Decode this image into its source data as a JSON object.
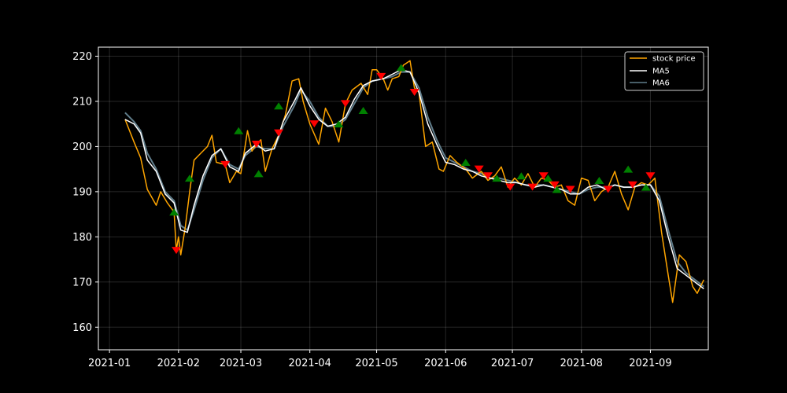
{
  "chart_data": {
    "type": "line",
    "title": "",
    "xlabel": "",
    "ylabel": "",
    "xlim": [
      "2020-12-27",
      "2021-09-27"
    ],
    "ylim": [
      155,
      222
    ],
    "x_ticks": [
      "2021-01",
      "2021-02",
      "2021-03",
      "2021-04",
      "2021-05",
      "2021-06",
      "2021-07",
      "2021-08",
      "2021-09"
    ],
    "y_ticks": [
      160,
      170,
      180,
      190,
      200,
      210,
      220
    ],
    "grid": true,
    "legend_position": "top-right",
    "series": [
      {
        "name": "stock price",
        "color": "#ffa500",
        "points": [
          [
            "2021-01-08",
            206.0
          ],
          [
            "2021-01-12",
            201.0
          ],
          [
            "2021-01-15",
            197.5
          ],
          [
            "2021-01-18",
            190.5
          ],
          [
            "2021-01-22",
            187.0
          ],
          [
            "2021-01-24",
            190.0
          ],
          [
            "2021-01-27",
            187.5
          ],
          [
            "2021-01-30",
            185.5
          ],
          [
            "2021-01-31",
            177.0
          ],
          [
            "2021-02-01",
            180.0
          ],
          [
            "2021-02-02",
            176.0
          ],
          [
            "2021-02-04",
            182.0
          ],
          [
            "2021-02-06",
            190.0
          ],
          [
            "2021-02-08",
            197.0
          ],
          [
            "2021-02-11",
            198.5
          ],
          [
            "2021-02-14",
            200.0
          ],
          [
            "2021-02-16",
            202.5
          ],
          [
            "2021-02-18",
            196.5
          ],
          [
            "2021-02-22",
            196.0
          ],
          [
            "2021-02-24",
            192.0
          ],
          [
            "2021-02-27",
            194.5
          ],
          [
            "2021-03-01",
            194.0
          ],
          [
            "2021-03-04",
            203.5
          ],
          [
            "2021-03-06",
            199.0
          ],
          [
            "2021-03-08",
            200.5
          ],
          [
            "2021-03-10",
            201.5
          ],
          [
            "2021-03-12",
            194.5
          ],
          [
            "2021-03-15",
            199.5
          ],
          [
            "2021-03-18",
            202.5
          ],
          [
            "2021-03-21",
            207.0
          ],
          [
            "2021-03-24",
            214.5
          ],
          [
            "2021-03-27",
            215.0
          ],
          [
            "2021-03-29",
            210.0
          ],
          [
            "2021-04-01",
            205.0
          ],
          [
            "2021-04-05",
            200.5
          ],
          [
            "2021-04-08",
            208.5
          ],
          [
            "2021-04-11",
            205.5
          ],
          [
            "2021-04-14",
            201.0
          ],
          [
            "2021-04-17",
            209.5
          ],
          [
            "2021-04-20",
            212.5
          ],
          [
            "2021-04-24",
            214.0
          ],
          [
            "2021-04-27",
            211.5
          ],
          [
            "2021-04-29",
            217.0
          ],
          [
            "2021-05-01",
            217.0
          ],
          [
            "2021-05-04",
            215.0
          ],
          [
            "2021-05-06",
            212.5
          ],
          [
            "2021-05-08",
            215.0
          ],
          [
            "2021-05-11",
            215.5
          ],
          [
            "2021-05-13",
            218.0
          ],
          [
            "2021-05-16",
            219.0
          ],
          [
            "2021-05-18",
            213.0
          ],
          [
            "2021-05-20",
            212.0
          ],
          [
            "2021-05-23",
            200.0
          ],
          [
            "2021-05-26",
            201.0
          ],
          [
            "2021-05-29",
            195.0
          ],
          [
            "2021-05-31",
            194.5
          ],
          [
            "2021-06-03",
            198.0
          ],
          [
            "2021-06-06",
            196.5
          ],
          [
            "2021-06-10",
            195.0
          ],
          [
            "2021-06-13",
            193.0
          ],
          [
            "2021-06-17",
            194.5
          ],
          [
            "2021-06-20",
            192.5
          ],
          [
            "2021-06-23",
            193.5
          ],
          [
            "2021-06-26",
            195.5
          ],
          [
            "2021-06-29",
            191.0
          ],
          [
            "2021-07-02",
            193.0
          ],
          [
            "2021-07-05",
            191.5
          ],
          [
            "2021-07-08",
            194.0
          ],
          [
            "2021-07-11",
            191.0
          ],
          [
            "2021-07-14",
            193.0
          ],
          [
            "2021-07-17",
            192.5
          ],
          [
            "2021-07-20",
            191.0
          ],
          [
            "2021-07-23",
            191.5
          ],
          [
            "2021-07-26",
            188.0
          ],
          [
            "2021-07-29",
            187.0
          ],
          [
            "2021-08-01",
            193.0
          ],
          [
            "2021-08-04",
            192.5
          ],
          [
            "2021-08-07",
            188.0
          ],
          [
            "2021-08-10",
            190.0
          ],
          [
            "2021-08-13",
            191.0
          ],
          [
            "2021-08-16",
            194.5
          ],
          [
            "2021-08-19",
            189.5
          ],
          [
            "2021-08-22",
            186.0
          ],
          [
            "2021-08-25",
            191.0
          ],
          [
            "2021-08-28",
            192.0
          ],
          [
            "2021-08-31",
            191.5
          ],
          [
            "2021-09-03",
            193.0
          ],
          [
            "2021-09-06",
            181.0
          ],
          [
            "2021-09-09",
            171.5
          ],
          [
            "2021-09-11",
            165.5
          ],
          [
            "2021-09-14",
            176.0
          ],
          [
            "2021-09-17",
            174.5
          ],
          [
            "2021-09-20",
            169.0
          ],
          [
            "2021-09-22",
            167.5
          ],
          [
            "2021-09-25",
            170.5
          ]
        ]
      },
      {
        "name": "MA5",
        "color": "#ffffff",
        "points": [
          [
            "2021-01-08",
            206.0
          ],
          [
            "2021-01-12",
            205.0
          ],
          [
            "2021-01-15",
            203.0
          ],
          [
            "2021-01-18",
            197.0
          ],
          [
            "2021-01-22",
            194.5
          ],
          [
            "2021-01-26",
            189.5
          ],
          [
            "2021-01-30",
            187.5
          ],
          [
            "2021-02-02",
            181.5
          ],
          [
            "2021-02-05",
            181.0
          ],
          [
            "2021-02-08",
            187.0
          ],
          [
            "2021-02-12",
            193.5
          ],
          [
            "2021-02-16",
            198.0
          ],
          [
            "2021-02-20",
            199.5
          ],
          [
            "2021-02-24",
            195.5
          ],
          [
            "2021-02-28",
            194.5
          ],
          [
            "2021-03-03",
            198.5
          ],
          [
            "2021-03-08",
            200.5
          ],
          [
            "2021-03-12",
            199.0
          ],
          [
            "2021-03-16",
            199.5
          ],
          [
            "2021-03-20",
            205.5
          ],
          [
            "2021-03-25",
            210.0
          ],
          [
            "2021-03-28",
            213.0
          ],
          [
            "2021-04-01",
            209.0
          ],
          [
            "2021-04-05",
            206.0
          ],
          [
            "2021-04-09",
            204.5
          ],
          [
            "2021-04-13",
            205.0
          ],
          [
            "2021-04-17",
            206.5
          ],
          [
            "2021-04-21",
            210.5
          ],
          [
            "2021-04-25",
            213.5
          ],
          [
            "2021-04-29",
            214.5
          ],
          [
            "2021-05-04",
            215.0
          ],
          [
            "2021-05-08",
            216.0
          ],
          [
            "2021-05-12",
            217.0
          ],
          [
            "2021-05-16",
            216.5
          ],
          [
            "2021-05-20",
            212.0
          ],
          [
            "2021-05-24",
            205.0
          ],
          [
            "2021-05-28",
            200.5
          ],
          [
            "2021-06-01",
            196.5
          ],
          [
            "2021-06-05",
            196.0
          ],
          [
            "2021-06-09",
            195.0
          ],
          [
            "2021-06-13",
            194.5
          ],
          [
            "2021-06-17",
            193.5
          ],
          [
            "2021-06-21",
            193.0
          ],
          [
            "2021-06-25",
            192.5
          ],
          [
            "2021-06-29",
            192.0
          ],
          [
            "2021-07-03",
            192.0
          ],
          [
            "2021-07-07",
            191.5
          ],
          [
            "2021-07-11",
            191.0
          ],
          [
            "2021-07-15",
            191.5
          ],
          [
            "2021-07-19",
            191.0
          ],
          [
            "2021-07-23",
            190.5
          ],
          [
            "2021-07-27",
            189.5
          ],
          [
            "2021-07-31",
            189.5
          ],
          [
            "2021-08-04",
            191.0
          ],
          [
            "2021-08-08",
            191.5
          ],
          [
            "2021-08-12",
            190.5
          ],
          [
            "2021-08-16",
            191.5
          ],
          [
            "2021-08-20",
            191.0
          ],
          [
            "2021-08-24",
            191.0
          ],
          [
            "2021-08-28",
            191.5
          ],
          [
            "2021-09-01",
            191.5
          ],
          [
            "2021-09-05",
            188.0
          ],
          [
            "2021-09-09",
            180.0
          ],
          [
            "2021-09-13",
            173.0
          ],
          [
            "2021-09-17",
            171.5
          ],
          [
            "2021-09-21",
            170.0
          ],
          [
            "2021-09-25",
            168.5
          ]
        ]
      },
      {
        "name": "MA6",
        "color": "#607d8b",
        "points": [
          [
            "2021-01-08",
            207.5
          ],
          [
            "2021-01-12",
            205.5
          ],
          [
            "2021-01-15",
            203.5
          ],
          [
            "2021-01-18",
            198.5
          ],
          [
            "2021-01-22",
            195.0
          ],
          [
            "2021-01-26",
            190.0
          ],
          [
            "2021-01-30",
            188.0
          ],
          [
            "2021-02-02",
            182.5
          ],
          [
            "2021-02-05",
            181.5
          ],
          [
            "2021-02-08",
            186.0
          ],
          [
            "2021-02-12",
            192.5
          ],
          [
            "2021-02-16",
            197.5
          ],
          [
            "2021-02-20",
            199.5
          ],
          [
            "2021-02-24",
            196.0
          ],
          [
            "2021-02-28",
            195.0
          ],
          [
            "2021-03-03",
            198.0
          ],
          [
            "2021-03-08",
            200.0
          ],
          [
            "2021-03-12",
            199.5
          ],
          [
            "2021-03-16",
            199.5
          ],
          [
            "2021-03-20",
            204.5
          ],
          [
            "2021-03-25",
            209.0
          ],
          [
            "2021-03-28",
            212.5
          ],
          [
            "2021-04-01",
            210.0
          ],
          [
            "2021-04-05",
            206.5
          ],
          [
            "2021-04-09",
            204.5
          ],
          [
            "2021-04-13",
            204.5
          ],
          [
            "2021-04-17",
            206.0
          ],
          [
            "2021-04-21",
            209.5
          ],
          [
            "2021-04-25",
            213.0
          ],
          [
            "2021-04-29",
            214.5
          ],
          [
            "2021-05-04",
            215.0
          ],
          [
            "2021-05-08",
            215.5
          ],
          [
            "2021-05-12",
            216.5
          ],
          [
            "2021-05-16",
            216.5
          ],
          [
            "2021-05-20",
            213.0
          ],
          [
            "2021-05-24",
            206.5
          ],
          [
            "2021-05-28",
            201.5
          ],
          [
            "2021-06-01",
            197.5
          ],
          [
            "2021-06-05",
            196.5
          ],
          [
            "2021-06-09",
            195.5
          ],
          [
            "2021-06-13",
            194.5
          ],
          [
            "2021-06-17",
            194.0
          ],
          [
            "2021-06-21",
            193.0
          ],
          [
            "2021-06-25",
            193.0
          ],
          [
            "2021-06-29",
            192.5
          ],
          [
            "2021-07-03",
            192.0
          ],
          [
            "2021-07-07",
            191.5
          ],
          [
            "2021-07-11",
            191.5
          ],
          [
            "2021-07-15",
            191.5
          ],
          [
            "2021-07-19",
            191.0
          ],
          [
            "2021-07-23",
            190.5
          ],
          [
            "2021-07-27",
            190.0
          ],
          [
            "2021-07-31",
            189.5
          ],
          [
            "2021-08-04",
            190.5
          ],
          [
            "2021-08-08",
            191.0
          ],
          [
            "2021-08-12",
            191.0
          ],
          [
            "2021-08-16",
            191.5
          ],
          [
            "2021-08-20",
            191.0
          ],
          [
            "2021-08-24",
            191.0
          ],
          [
            "2021-08-28",
            191.5
          ],
          [
            "2021-09-01",
            191.5
          ],
          [
            "2021-09-05",
            189.0
          ],
          [
            "2021-09-09",
            181.5
          ],
          [
            "2021-09-13",
            174.5
          ],
          [
            "2021-09-17",
            172.0
          ],
          [
            "2021-09-21",
            170.5
          ],
          [
            "2021-09-25",
            169.0
          ]
        ]
      }
    ],
    "buy_markers": {
      "color": "#008000",
      "shape": "triangle-up",
      "points": [
        [
          "2021-01-30",
          185.5
        ],
        [
          "2021-02-06",
          193.0
        ],
        [
          "2021-02-28",
          203.5
        ],
        [
          "2021-03-09",
          194.0
        ],
        [
          "2021-03-18",
          209.0
        ],
        [
          "2021-04-14",
          205.0
        ],
        [
          "2021-04-25",
          208.0
        ],
        [
          "2021-05-12",
          217.5
        ],
        [
          "2021-06-10",
          196.5
        ],
        [
          "2021-06-24",
          193.0
        ],
        [
          "2021-07-05",
          193.5
        ],
        [
          "2021-07-17",
          193.0
        ],
        [
          "2021-07-21",
          190.5
        ],
        [
          "2021-08-09",
          192.5
        ],
        [
          "2021-08-22",
          195.0
        ],
        [
          "2021-08-30",
          191.0
        ]
      ]
    },
    "sell_markers": {
      "color": "#ff0000",
      "shape": "triangle-down",
      "points": [
        [
          "2021-01-31",
          177.0
        ],
        [
          "2021-02-22",
          196.0
        ],
        [
          "2021-03-08",
          200.5
        ],
        [
          "2021-03-18",
          203.0
        ],
        [
          "2021-04-03",
          205.0
        ],
        [
          "2021-04-17",
          209.5
        ],
        [
          "2021-05-03",
          215.5
        ],
        [
          "2021-05-18",
          212.0
        ],
        [
          "2021-06-16",
          195.0
        ],
        [
          "2021-06-20",
          193.5
        ],
        [
          "2021-06-30",
          191.0
        ],
        [
          "2021-07-10",
          191.0
        ],
        [
          "2021-07-15",
          193.5
        ],
        [
          "2021-07-20",
          191.5
        ],
        [
          "2021-07-27",
          190.5
        ],
        [
          "2021-08-13",
          190.5
        ],
        [
          "2021-08-24",
          191.5
        ],
        [
          "2021-09-01",
          193.5
        ]
      ]
    }
  }
}
